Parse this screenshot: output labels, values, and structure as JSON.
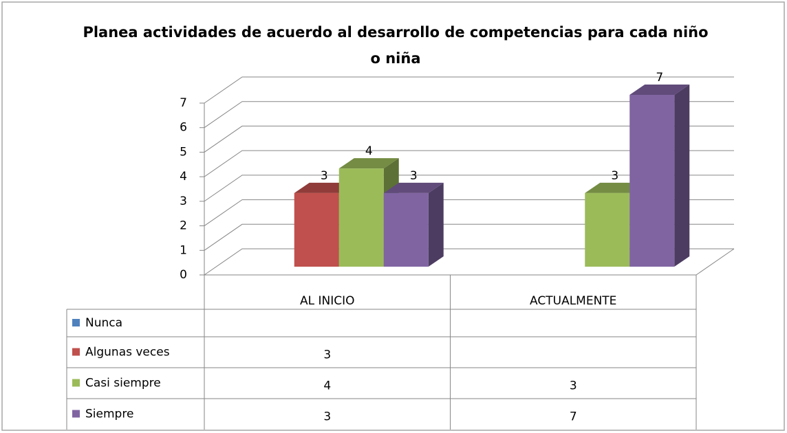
{
  "chart_data": {
    "type": "bar3d",
    "title": "Planea actividades de acuerdo al desarrollo de competencias para cada niño o niña",
    "categories": [
      "AL INICIO",
      "ACTUALMENTE"
    ],
    "series": [
      {
        "name": "Nunca",
        "color": "#4f81bd",
        "values": [
          null,
          null
        ]
      },
      {
        "name": "Algunas veces",
        "color": "#c0504d",
        "values": [
          3,
          null
        ]
      },
      {
        "name": "Casi siempre",
        "color": "#9bbb59",
        "values": [
          4,
          3
        ]
      },
      {
        "name": "Siempre",
        "color": "#8064a2",
        "values": [
          3,
          7
        ]
      }
    ],
    "ylim": [
      0,
      7
    ],
    "yticks": [
      0,
      1,
      2,
      3,
      4,
      5,
      6,
      7
    ],
    "grid": true,
    "data_table": true
  }
}
